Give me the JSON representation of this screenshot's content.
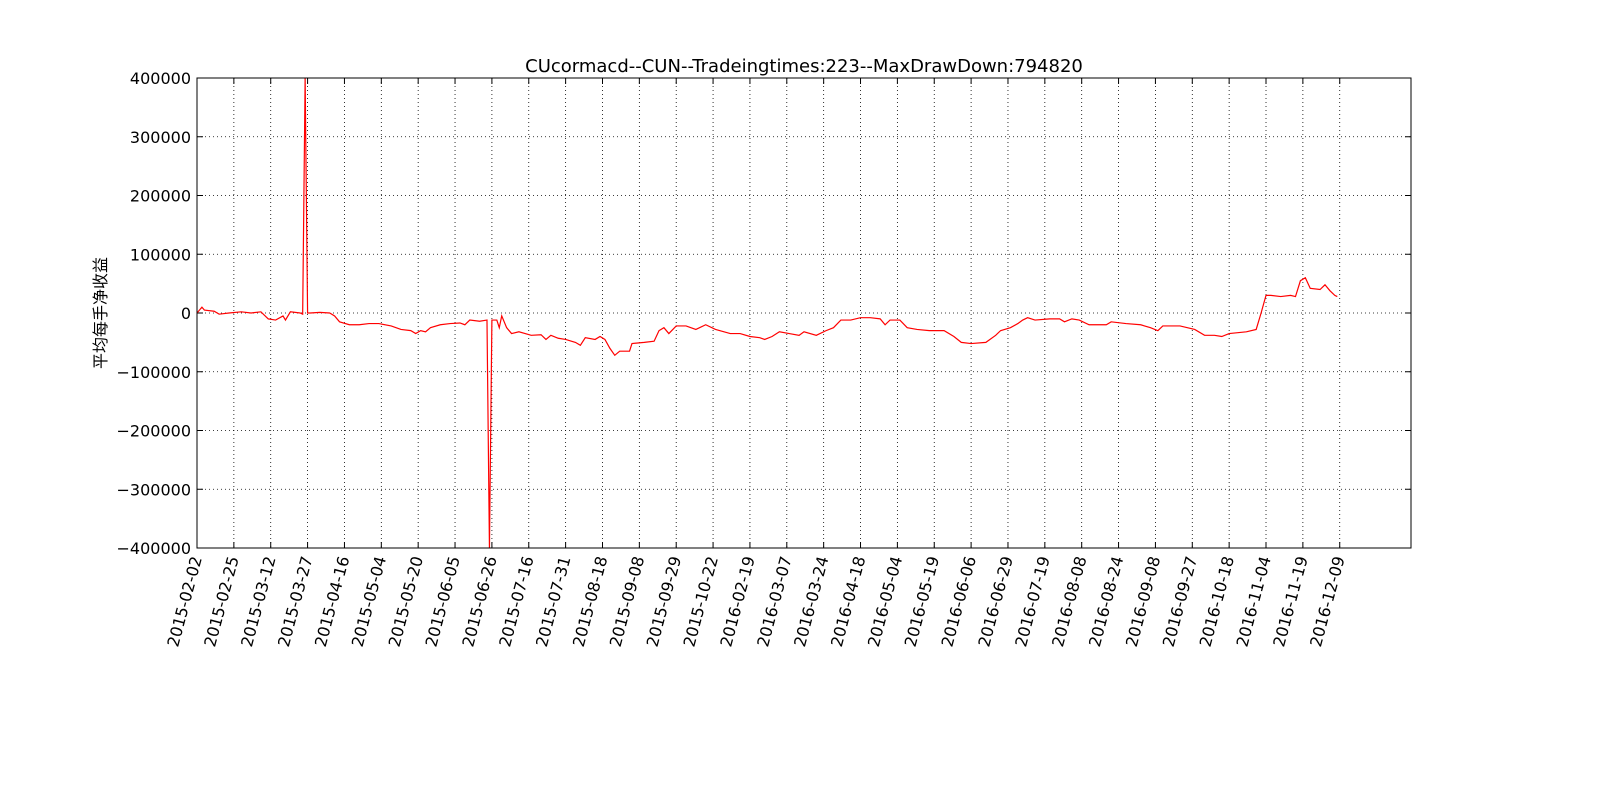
{
  "chart_data": {
    "type": "line",
    "title": "CUcormacd--CUN--Tradeingtimes:223--MaxDrawDown:794820",
    "ylabel": "平均每手净收益",
    "grid": true,
    "xlim": [
      0,
      494
    ],
    "ylim": [
      -400000,
      400000
    ],
    "yticks": [
      {
        "value": -400000,
        "label": "−400000"
      },
      {
        "value": -300000,
        "label": "−300000"
      },
      {
        "value": -200000,
        "label": "−200000"
      },
      {
        "value": -100000,
        "label": "−100000"
      },
      0,
      100000,
      200000,
      300000,
      400000
    ],
    "xticks": [
      {
        "value": 0,
        "label": "2015-02-02"
      },
      {
        "value": 15,
        "label": "2015-02-25"
      },
      {
        "value": 30,
        "label": "2015-03-12"
      },
      {
        "value": 45,
        "label": "2015-03-27"
      },
      {
        "value": 60,
        "label": "2015-04-16"
      },
      {
        "value": 75,
        "label": "2015-05-04"
      },
      {
        "value": 90,
        "label": "2015-05-20"
      },
      {
        "value": 105,
        "label": "2015-06-05"
      },
      {
        "value": 120,
        "label": "2015-06-26"
      },
      {
        "value": 135,
        "label": "2015-07-16"
      },
      {
        "value": 150,
        "label": "2015-07-31"
      },
      {
        "value": 165,
        "label": "2015-08-18"
      },
      {
        "value": 180,
        "label": "2015-09-08"
      },
      {
        "value": 195,
        "label": "2015-09-29"
      },
      {
        "value": 210,
        "label": "2015-10-22"
      },
      {
        "value": 225,
        "label": "2016-02-19"
      },
      {
        "value": 240,
        "label": "2016-03-07"
      },
      {
        "value": 255,
        "label": "2016-03-24"
      },
      {
        "value": 270,
        "label": "2016-04-18"
      },
      {
        "value": 285,
        "label": "2016-05-04"
      },
      {
        "value": 300,
        "label": "2016-05-19"
      },
      {
        "value": 315,
        "label": "2016-06-06"
      },
      {
        "value": 330,
        "label": "2016-06-29"
      },
      {
        "value": 345,
        "label": "2016-07-19"
      },
      {
        "value": 360,
        "label": "2016-08-08"
      },
      {
        "value": 375,
        "label": "2016-08-24"
      },
      {
        "value": 390,
        "label": "2016-09-08"
      },
      {
        "value": 405,
        "label": "2016-09-27"
      },
      {
        "value": 420,
        "label": "2016-10-18"
      },
      {
        "value": 435,
        "label": "2016-11-04"
      },
      {
        "value": 450,
        "label": "2016-11-19"
      },
      {
        "value": 465,
        "label": "2016-12-09"
      }
    ],
    "series": [
      {
        "color": "#ff0000",
        "x": [
          0,
          2,
          3,
          7,
          9,
          13,
          18,
          22,
          26,
          29,
          32,
          35,
          36,
          38,
          42,
          43,
          44,
          45,
          46,
          50,
          54,
          56,
          58,
          62,
          66,
          70,
          74,
          79,
          83,
          87,
          89,
          91,
          93,
          95,
          99,
          103,
          107,
          109,
          111,
          115,
          118,
          119,
          120,
          122,
          123,
          124,
          126,
          128,
          131,
          136,
          140,
          142,
          144,
          147,
          150,
          154,
          156,
          158,
          162,
          164,
          166,
          168,
          170,
          172,
          176,
          177,
          182,
          186,
          188,
          190,
          192,
          195,
          199,
          203,
          207,
          211,
          217,
          221,
          225,
          229,
          231,
          234,
          237,
          241,
          245,
          247,
          252,
          256,
          259,
          262,
          266,
          270,
          274,
          278,
          280,
          282,
          286,
          289,
          293,
          298,
          304,
          308,
          311,
          315,
          321,
          325,
          327,
          331,
          334,
          336,
          338,
          341,
          347,
          351,
          353,
          356,
          359,
          363,
          370,
          372,
          378,
          384,
          388,
          391,
          393,
          400,
          406,
          410,
          414,
          417,
          420,
          427,
          431,
          433,
          435,
          437,
          441,
          445,
          447,
          449,
          451,
          453,
          457,
          459,
          461,
          463,
          464
        ],
        "values": [
          0,
          10000,
          5000,
          3000,
          -2000,
          0,
          2000,
          0,
          2000,
          -10000,
          -12000,
          -5000,
          -12000,
          2000,
          0,
          -2000,
          400000,
          0,
          0,
          1000,
          0,
          -5000,
          -15000,
          -20000,
          -20000,
          -18000,
          -18000,
          -22000,
          -28000,
          -30000,
          -35000,
          -30000,
          -32000,
          -25000,
          -20000,
          -18000,
          -17000,
          -20000,
          -12000,
          -14000,
          -12000,
          -400000,
          -12000,
          -12000,
          -25000,
          -5000,
          -25000,
          -35000,
          -32000,
          -38000,
          -37000,
          -45000,
          -38000,
          -43000,
          -45000,
          -50000,
          -55000,
          -42000,
          -45000,
          -40000,
          -45000,
          -60000,
          -72000,
          -65000,
          -65000,
          -52000,
          -50000,
          -48000,
          -30000,
          -25000,
          -35000,
          -22000,
          -22000,
          -28000,
          -20000,
          -28000,
          -35000,
          -35000,
          -40000,
          -42000,
          -45000,
          -40000,
          -32000,
          -35000,
          -38000,
          -32000,
          -38000,
          -30000,
          -25000,
          -12000,
          -12000,
          -8000,
          -8000,
          -10000,
          -20000,
          -12000,
          -12000,
          -25000,
          -28000,
          -30000,
          -30000,
          -40000,
          -50000,
          -52000,
          -50000,
          -38000,
          -30000,
          -25000,
          -18000,
          -12000,
          -8000,
          -12000,
          -10000,
          -10000,
          -15000,
          -10000,
          -12000,
          -20000,
          -20000,
          -15000,
          -18000,
          -20000,
          -25000,
          -30000,
          -22000,
          -22000,
          -28000,
          -38000,
          -38000,
          -40000,
          -35000,
          -32000,
          -28000,
          0,
          30000,
          30000,
          28000,
          30000,
          28000,
          55000,
          60000,
          42000,
          40000,
          48000,
          38000,
          30000,
          28000
        ]
      }
    ]
  }
}
